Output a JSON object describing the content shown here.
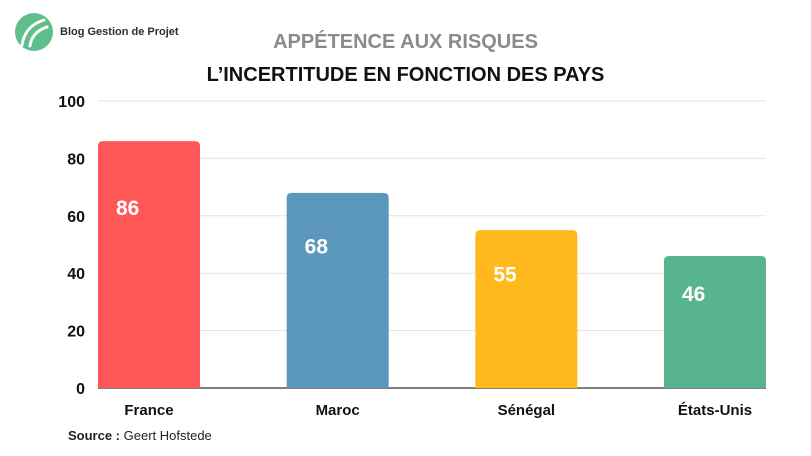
{
  "brand": {
    "name": "Blog Gestion de Projet"
  },
  "chart_data": {
    "type": "bar",
    "title": "APPÉTENCE AUX RISQUES",
    "subtitle": "L’INCERTITUDE EN FONCTION DES PAYS",
    "categories": [
      "France",
      "Maroc",
      "Sénégal",
      "États-Unis"
    ],
    "values": [
      86,
      68,
      55,
      46
    ],
    "colors": [
      "#ff5757",
      "#5b97bd",
      "#ffb91c",
      "#58b48e"
    ],
    "ylim": [
      0,
      100
    ],
    "yticks": [
      0,
      20,
      40,
      60,
      80,
      100
    ],
    "grid": true,
    "data_labels": true
  },
  "source": {
    "label": "Source :",
    "text": " Geert Hofstede"
  }
}
